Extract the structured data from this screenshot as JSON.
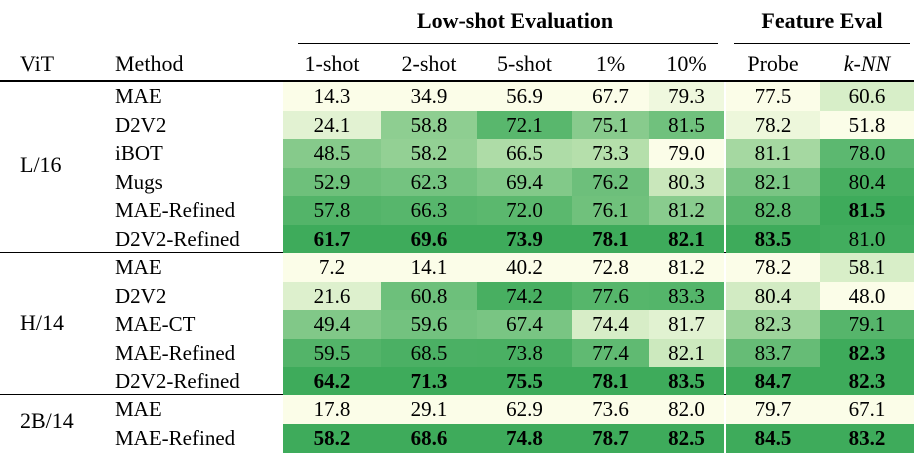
{
  "header": {
    "group_lowshot": "Low-shot Evaluation",
    "group_feature": "Feature Eval",
    "col_vit": "ViT",
    "col_method": "Method",
    "columns": [
      "1-shot",
      "2-shot",
      "5-shot",
      "1%",
      "10%",
      "Probe",
      "k-NN"
    ]
  },
  "groups": [
    {
      "vit": "L/16",
      "rows": [
        {
          "method": "MAE",
          "values": [
            "14.3",
            "34.9",
            "56.9",
            "67.7",
            "79.3",
            "77.5",
            "60.6"
          ],
          "bold": [
            false,
            false,
            false,
            false,
            false,
            false,
            false
          ]
        },
        {
          "method": "D2V2",
          "values": [
            "24.1",
            "58.8",
            "72.1",
            "75.1",
            "81.5",
            "78.2",
            "51.8"
          ],
          "bold": [
            false,
            false,
            false,
            false,
            false,
            false,
            false
          ]
        },
        {
          "method": "iBOT",
          "values": [
            "48.5",
            "58.2",
            "66.5",
            "73.3",
            "79.0",
            "81.1",
            "78.0"
          ],
          "bold": [
            false,
            false,
            false,
            false,
            false,
            false,
            false
          ]
        },
        {
          "method": "Mugs",
          "values": [
            "52.9",
            "62.3",
            "69.4",
            "76.2",
            "80.3",
            "82.1",
            "80.4"
          ],
          "bold": [
            false,
            false,
            false,
            false,
            false,
            false,
            false
          ]
        },
        {
          "method": "MAE-Refined",
          "values": [
            "57.8",
            "66.3",
            "72.0",
            "76.1",
            "81.2",
            "82.8",
            "81.5"
          ],
          "bold": [
            false,
            false,
            false,
            false,
            false,
            false,
            true
          ]
        },
        {
          "method": "D2V2-Refined",
          "values": [
            "61.7",
            "69.6",
            "73.9",
            "78.1",
            "82.1",
            "83.5",
            "81.0"
          ],
          "bold": [
            true,
            true,
            true,
            true,
            true,
            true,
            false
          ]
        }
      ]
    },
    {
      "vit": "H/14",
      "rows": [
        {
          "method": "MAE",
          "values": [
            "7.2",
            "14.1",
            "40.2",
            "72.8",
            "81.2",
            "78.2",
            "58.1"
          ],
          "bold": [
            false,
            false,
            false,
            false,
            false,
            false,
            false
          ]
        },
        {
          "method": "D2V2",
          "values": [
            "21.6",
            "60.8",
            "74.2",
            "77.6",
            "83.3",
            "80.4",
            "48.0"
          ],
          "bold": [
            false,
            false,
            false,
            false,
            false,
            false,
            false
          ]
        },
        {
          "method": "MAE-CT",
          "values": [
            "49.4",
            "59.6",
            "67.4",
            "74.4",
            "81.7",
            "82.3",
            "79.1"
          ],
          "bold": [
            false,
            false,
            false,
            false,
            false,
            false,
            false
          ]
        },
        {
          "method": "MAE-Refined",
          "values": [
            "59.5",
            "68.5",
            "73.8",
            "77.4",
            "82.1",
            "83.7",
            "82.3"
          ],
          "bold": [
            false,
            false,
            false,
            false,
            false,
            false,
            true
          ]
        },
        {
          "method": "D2V2-Refined",
          "values": [
            "64.2",
            "71.3",
            "75.5",
            "78.1",
            "83.5",
            "84.7",
            "82.3"
          ],
          "bold": [
            true,
            true,
            true,
            true,
            true,
            true,
            true
          ]
        }
      ]
    },
    {
      "vit": "2B/14",
      "rows": [
        {
          "method": "MAE",
          "values": [
            "17.8",
            "29.1",
            "62.9",
            "73.6",
            "82.0",
            "79.7",
            "67.1"
          ],
          "bold": [
            false,
            false,
            false,
            false,
            false,
            false,
            false
          ]
        },
        {
          "method": "MAE-Refined",
          "values": [
            "58.2",
            "68.6",
            "74.8",
            "78.7",
            "82.5",
            "84.5",
            "83.2"
          ],
          "bold": [
            true,
            true,
            true,
            true,
            true,
            true,
            true
          ]
        }
      ]
    }
  ],
  "colors": {
    "scale_low": "#fbfde8",
    "scale_mid": "#bfe3b2",
    "scale_high": "#3eab5b"
  }
}
